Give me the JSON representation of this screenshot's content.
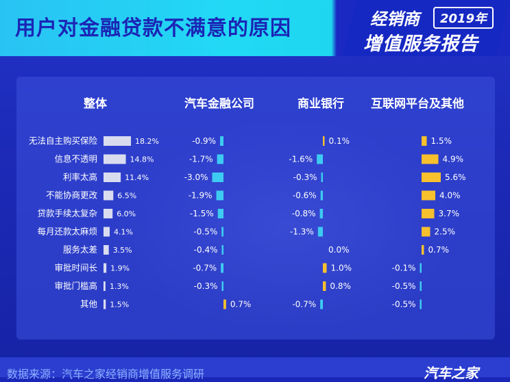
{
  "page": {
    "title": "用户对金融贷款不满意的原因",
    "brand_top": "经销商",
    "brand_year": "2019年",
    "brand_sub": "增值服务报告",
    "source": "数据来源：汽车之家经销商增值服务调研",
    "logo": "汽车之家"
  },
  "chart_data": {
    "type": "bar",
    "orientation": "horizontal",
    "categories": [
      "无法自主购买保险",
      "信息不透明",
      "利率太高",
      "不能协商更改",
      "贷款手续太复杂",
      "每月还款太麻烦",
      "服务太差",
      "审批时间长",
      "审批门槛高",
      "其他"
    ],
    "series": [
      {
        "name": "整体",
        "values": [
          18.2,
          14.8,
          11.4,
          6.5,
          6.0,
          4.1,
          3.5,
          1.9,
          1.3,
          1.5
        ]
      },
      {
        "name": "汽车金融公司",
        "values": [
          -0.9,
          -1.7,
          -3.0,
          -1.9,
          -1.5,
          -0.5,
          -0.4,
          -0.7,
          -0.3,
          0.7
        ]
      },
      {
        "name": "商业银行",
        "values": [
          0.1,
          -1.6,
          -0.3,
          -0.6,
          -0.8,
          -1.3,
          0.0,
          1.0,
          0.8,
          -0.7
        ]
      },
      {
        "name": "互联网平台及其他",
        "values": [
          1.5,
          4.9,
          5.6,
          4.0,
          3.7,
          2.5,
          0.7,
          -0.1,
          -0.5,
          -0.5
        ]
      }
    ],
    "unit": "%",
    "colors": {
      "overall": "#d9dcef",
      "negative": "#3ecbf1",
      "positive": "#f7c02d",
      "label": "#ffffff"
    }
  }
}
